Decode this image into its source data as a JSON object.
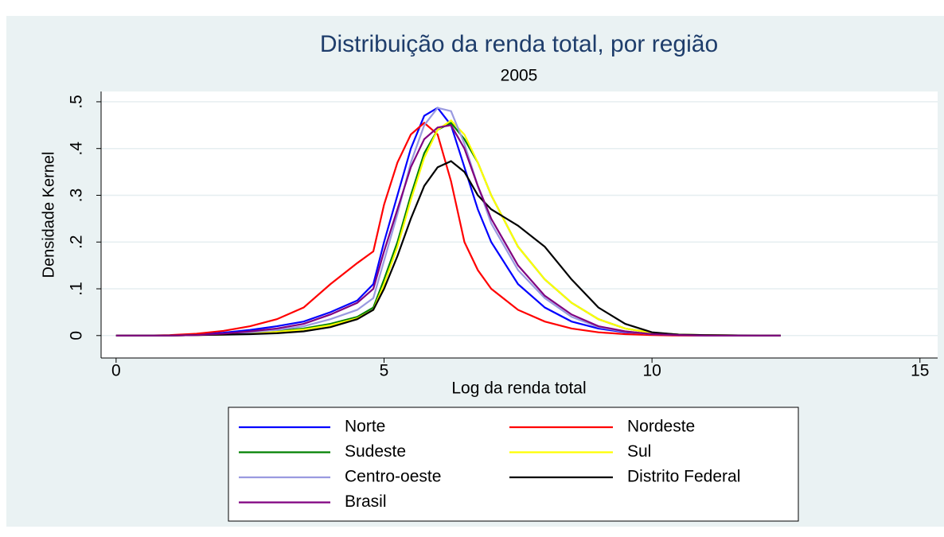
{
  "chart_data": {
    "type": "line",
    "title": "Distribuição da renda total, por região",
    "subtitle": "2005",
    "x_label": "Log da renda total",
    "y_label": "Densidade Kernel",
    "x": [
      0,
      0.5,
      1,
      1.5,
      2,
      2.5,
      3,
      3.5,
      4,
      4.5,
      4.8,
      5,
      5.25,
      5.5,
      5.75,
      6,
      6.25,
      6.5,
      6.75,
      7,
      7.5,
      8,
      8.5,
      9,
      9.5,
      10,
      10.5,
      11,
      12,
      12.4
    ],
    "series": [
      {
        "name": "Norte",
        "color": "#0000ff",
        "values": [
          0,
          0,
          0,
          0.002,
          0.006,
          0.012,
          0.02,
          0.03,
          0.05,
          0.075,
          0.11,
          0.2,
          0.3,
          0.4,
          0.47,
          0.487,
          0.45,
          0.36,
          0.27,
          0.2,
          0.11,
          0.06,
          0.03,
          0.015,
          0.007,
          0.003,
          0.001,
          0,
          0,
          0
        ]
      },
      {
        "name": "Nordeste",
        "color": "#ff0000",
        "values": [
          0,
          0,
          0.001,
          0.004,
          0.01,
          0.02,
          0.035,
          0.06,
          0.11,
          0.155,
          0.18,
          0.28,
          0.37,
          0.43,
          0.455,
          0.43,
          0.33,
          0.2,
          0.14,
          0.1,
          0.055,
          0.03,
          0.015,
          0.007,
          0.003,
          0.001,
          0,
          0,
          0,
          0
        ]
      },
      {
        "name": "Sudeste",
        "color": "#008000",
        "values": [
          0,
          0,
          0,
          0.001,
          0.003,
          0.006,
          0.01,
          0.015,
          0.025,
          0.04,
          0.06,
          0.12,
          0.2,
          0.3,
          0.39,
          0.44,
          0.455,
          0.42,
          0.37,
          0.3,
          0.19,
          0.12,
          0.07,
          0.035,
          0.015,
          0.006,
          0.002,
          0.001,
          0,
          0
        ]
      },
      {
        "name": "Sul",
        "color": "#ffff00",
        "values": [
          0,
          0,
          0,
          0.001,
          0.002,
          0.005,
          0.008,
          0.013,
          0.022,
          0.037,
          0.055,
          0.11,
          0.19,
          0.29,
          0.38,
          0.44,
          0.46,
          0.43,
          0.37,
          0.3,
          0.19,
          0.12,
          0.07,
          0.035,
          0.015,
          0.006,
          0.002,
          0.001,
          0,
          0
        ]
      },
      {
        "name": "Centro-oeste",
        "color": "#9a9ae0",
        "values": [
          0,
          0,
          0,
          0.001,
          0.003,
          0.007,
          0.012,
          0.02,
          0.035,
          0.055,
          0.08,
          0.16,
          0.26,
          0.37,
          0.45,
          0.487,
          0.48,
          0.41,
          0.32,
          0.24,
          0.14,
          0.08,
          0.04,
          0.018,
          0.008,
          0.003,
          0.001,
          0,
          0,
          0
        ]
      },
      {
        "name": "Distrito Federal",
        "color": "#000000",
        "values": [
          0,
          0,
          0,
          0.001,
          0.002,
          0.003,
          0.005,
          0.009,
          0.018,
          0.035,
          0.055,
          0.1,
          0.17,
          0.25,
          0.32,
          0.36,
          0.373,
          0.35,
          0.3,
          0.27,
          0.235,
          0.19,
          0.12,
          0.06,
          0.025,
          0.007,
          0.002,
          0.001,
          0,
          0
        ]
      },
      {
        "name": "Brasil",
        "color": "#800080",
        "values": [
          0,
          0,
          0,
          0.001,
          0.004,
          0.009,
          0.015,
          0.025,
          0.045,
          0.07,
          0.1,
          0.18,
          0.27,
          0.36,
          0.42,
          0.445,
          0.45,
          0.4,
          0.32,
          0.25,
          0.15,
          0.085,
          0.045,
          0.02,
          0.009,
          0.003,
          0.001,
          0,
          0,
          0
        ]
      }
    ],
    "xlim": [
      -0.28,
      15.33
    ],
    "ylim": [
      -0.048,
      0.522
    ],
    "xticks": [
      0,
      5,
      10,
      15
    ],
    "yticks": [
      0,
      {
        "value": 0.1,
        "label": ".1"
      },
      {
        "value": 0.2,
        "label": ".2"
      },
      {
        "value": 0.3,
        "label": ".3"
      },
      {
        "value": 0.4,
        "label": ".4"
      },
      {
        "value": 0.5,
        "label": ".5"
      }
    ],
    "grid": true
  }
}
